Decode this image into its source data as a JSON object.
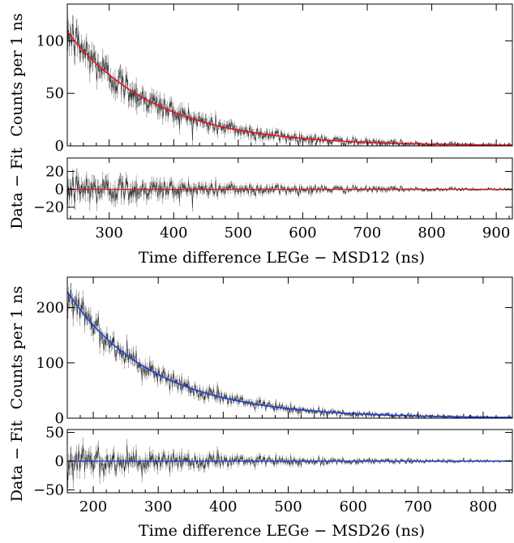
{
  "chart_data": [
    {
      "type": "line",
      "title": "",
      "xlabel": "Time difference LEGe − MSD12 (ns)",
      "ylabel": "Counts per 1 ns",
      "xlim": [
        235,
        925
      ],
      "ylim": [
        0,
        135
      ],
      "xticks": [
        300,
        400,
        500,
        600,
        700,
        800,
        900
      ],
      "yticks": [
        0,
        50,
        100
      ],
      "fit_color": "#e8101a",
      "fit": {
        "model": "exponential",
        "x": [
          245,
          300,
          400,
          500,
          600,
          700,
          800,
          900
        ],
        "y": [
          101,
          67.6,
          32.2,
          15.0,
          7.2,
          3.3,
          1.6,
          0.8
        ]
      },
      "noise_level": 7.5,
      "grid": false,
      "residuals": {
        "ylabel": "Data − Fit",
        "ylim": [
          -33,
          35
        ],
        "yticks": [
          -20,
          0,
          20
        ],
        "spread": 11
      }
    },
    {
      "type": "line",
      "title": "",
      "xlabel": "Time difference LEGe − MSD26 (ns)",
      "ylabel": "Counts per 1 ns",
      "xlim": [
        160,
        845
      ],
      "ylim": [
        0,
        255
      ],
      "xticks": [
        200,
        300,
        400,
        500,
        600,
        700,
        800
      ],
      "yticks": [
        0,
        100,
        200
      ],
      "fit_color": "#1a3fd8",
      "fit": {
        "model": "exponential",
        "x": [
          165,
          200,
          300,
          400,
          500,
          600,
          700,
          800
        ],
        "y": [
          220,
          168,
          79,
          37,
          17.5,
          8.2,
          3.9,
          1.8
        ]
      },
      "noise_level": 12,
      "grid": false,
      "residuals": {
        "ylabel": "Data − Fit",
        "ylim": [
          -55,
          55
        ],
        "yticks": [
          -50,
          0,
          50
        ],
        "spread": 15
      }
    }
  ]
}
